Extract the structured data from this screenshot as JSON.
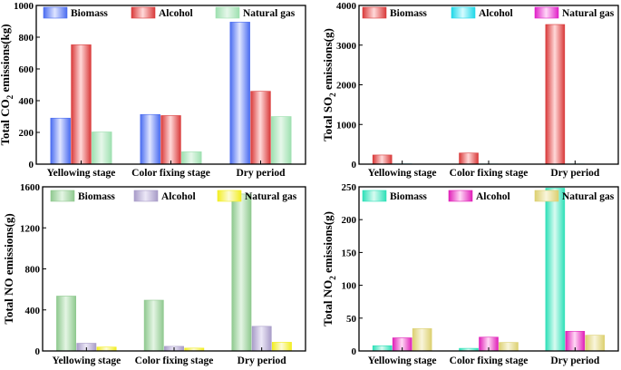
{
  "chart_data": [
    {
      "type": "bar",
      "panel": "top-left",
      "ylabel_parts": [
        "Total CO",
        "2",
        " emissions(kg)"
      ],
      "categories": [
        "Yellowing stage",
        "Color fixing stage",
        "Dry period"
      ],
      "ylim": [
        0,
        1000
      ],
      "yticks": [
        0,
        200,
        400,
        600,
        800,
        1000
      ],
      "legend": "top",
      "series": [
        {
          "name": "Biomass",
          "values": [
            290,
            313,
            895
          ],
          "color": "#4a6cf0",
          "light": "#dfe5ff"
        },
        {
          "name": "Alcohol",
          "values": [
            752,
            306,
            459
          ],
          "color": "#d93a3a",
          "light": "#ffd9d9"
        },
        {
          "name": "Natural gas",
          "values": [
            203,
            78,
            300
          ],
          "color": "#9ee0b0",
          "light": "#e6f7ea"
        }
      ]
    },
    {
      "type": "bar",
      "panel": "top-right",
      "ylabel_parts": [
        "Total SO",
        "2",
        " emissions(g)"
      ],
      "categories": [
        "Yellowing stage",
        "Color fixing stage",
        "Dry period"
      ],
      "ylim": [
        0,
        4000
      ],
      "yticks": [
        0,
        1000,
        2000,
        3000,
        4000
      ],
      "legend": "top",
      "series": [
        {
          "name": "Biomass",
          "values": [
            230,
            280,
            3520
          ],
          "color": "#d93a3a",
          "light": "#ffd9d9"
        },
        {
          "name": "Alcohol",
          "values": [
            8,
            6,
            6
          ],
          "color": "#1ed8e8",
          "light": "#d6fbff"
        },
        {
          "name": "Natural gas",
          "values": [
            3,
            2,
            3
          ],
          "color": "#e020c8",
          "light": "#ffd9f7"
        }
      ]
    },
    {
      "type": "bar",
      "panel": "bottom-left",
      "ylabel_parts": [
        "Total NO emissions(g)"
      ],
      "categories": [
        "Yellowing stage",
        "Color fixing stage",
        "Dry period"
      ],
      "ylim": [
        0,
        1600
      ],
      "yticks": [
        0,
        400,
        800,
        1200,
        1600
      ],
      "legend": "top",
      "series": [
        {
          "name": "Biomass",
          "values": [
            535,
            495,
            1530
          ],
          "color": "#8fc98f",
          "light": "#e4f5e4"
        },
        {
          "name": "Alcohol",
          "values": [
            75,
            45,
            240
          ],
          "color": "#a89cc8",
          "light": "#ece8f7"
        },
        {
          "name": "Natural gas",
          "values": [
            38,
            28,
            85
          ],
          "color": "#f2ee22",
          "light": "#fdfbd8"
        }
      ]
    },
    {
      "type": "bar",
      "panel": "bottom-right",
      "ylabel_parts": [
        "Total NO",
        "2",
        " emissions(g)"
      ],
      "categories": [
        "Yellowing stage",
        "Color fixing stage",
        "Dry period"
      ],
      "ylim": [
        0,
        250
      ],
      "yticks": [
        0,
        50,
        100,
        150,
        200,
        250
      ],
      "legend": "top",
      "series": [
        {
          "name": "Biomass",
          "values": [
            8,
            4,
            248
          ],
          "color": "#2ee0b8",
          "light": "#d8fbf1"
        },
        {
          "name": "Alcohol",
          "values": [
            20,
            21,
            30
          ],
          "color": "#e020b8",
          "light": "#ffd9f5"
        },
        {
          "name": "Natural gas",
          "values": [
            34,
            13,
            24
          ],
          "color": "#dcd070",
          "light": "#f9f5dc"
        }
      ]
    }
  ]
}
